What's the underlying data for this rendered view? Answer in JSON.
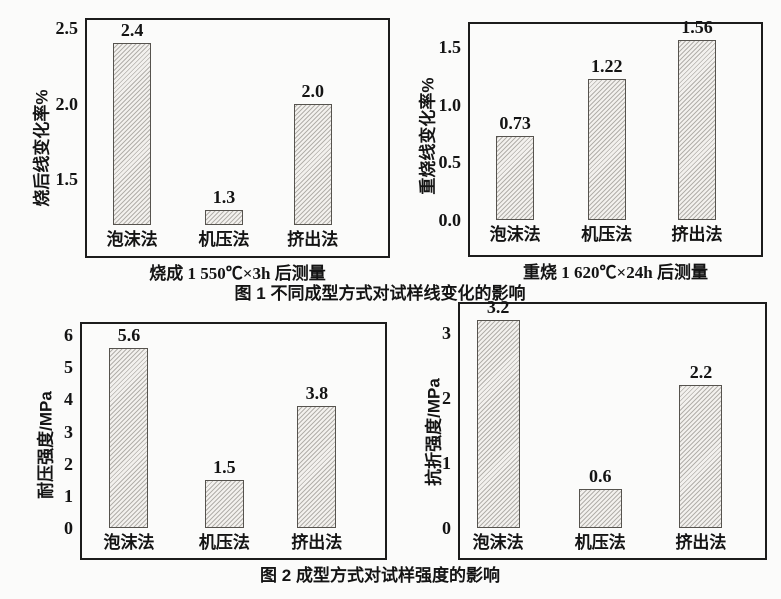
{
  "captions": {
    "figure1": "图 1 不同成型方式对试样线变化的影响",
    "figure2": "图 2 成型方式对试样强度的影响"
  },
  "chart_data": [
    {
      "id": "fired-linear-change-rate",
      "figure": "图 1",
      "type": "bar",
      "ylabel": "烧后线变化率%",
      "xlabel": "烧成 1 550℃×3h 后测量",
      "categories": [
        "泡沫法",
        "机压法",
        "挤出法"
      ],
      "values": [
        2.4,
        1.3,
        2.0
      ],
      "value_labels": [
        "2.4",
        "1.3",
        "2.0"
      ],
      "yticks": [
        1.5,
        2.0,
        2.5
      ],
      "ytick_labels": [
        "1.5",
        "2.0",
        "2.5"
      ],
      "ylim": [
        1.2,
        2.55
      ],
      "grid": false,
      "legend": false
    },
    {
      "id": "reheat-linear-change-rate",
      "figure": "图 1",
      "type": "bar",
      "ylabel": "重烧线变化率%",
      "xlabel": "重烧 1 620℃×24h 后测量",
      "categories": [
        "泡沫法",
        "机压法",
        "挤出法"
      ],
      "values": [
        0.73,
        1.22,
        1.56
      ],
      "value_labels": [
        "0.73",
        "1.22",
        "1.56"
      ],
      "yticks": [
        0.0,
        0.5,
        1.0,
        1.5
      ],
      "ytick_labels": [
        "0.0",
        "0.5",
        "1.0",
        "1.5"
      ],
      "ylim": [
        0,
        1.7
      ],
      "grid": false,
      "legend": false
    },
    {
      "id": "compressive-strength",
      "figure": "图 2",
      "type": "bar",
      "ylabel": "耐压强度/MPa",
      "xlabel": "",
      "categories": [
        "泡沫法",
        "机压法",
        "挤出法"
      ],
      "values": [
        5.6,
        1.5,
        3.8
      ],
      "value_labels": [
        "5.6",
        "1.5",
        "3.8"
      ],
      "yticks": [
        0,
        1,
        2,
        3,
        4,
        5,
        6
      ],
      "ytick_labels": [
        "0",
        "1",
        "2",
        "3",
        "4",
        "5",
        "6"
      ],
      "ylim": [
        0,
        6.35
      ],
      "grid": false,
      "legend": false
    },
    {
      "id": "flexural-strength",
      "figure": "图 2",
      "type": "bar",
      "ylabel": "抗折强度/MPa",
      "xlabel": "",
      "categories": [
        "泡沫法",
        "机压法",
        "挤出法"
      ],
      "values": [
        3.2,
        0.6,
        2.2
      ],
      "value_labels": [
        "3.2",
        "0.6",
        "2.2"
      ],
      "yticks": [
        0,
        1,
        2,
        3
      ],
      "ytick_labels": [
        "0",
        "1",
        "2",
        "3"
      ],
      "ylim": [
        0,
        3.45
      ],
      "grid": false,
      "legend": false
    }
  ],
  "style": {
    "background": "#fbfbfa",
    "axis_color": "#1c1c1c",
    "text_color": "#141414",
    "bar_fill": "#f3f1ee",
    "bar_hatch_line": "#b3b0ab",
    "bar_border": "#56534e",
    "hatch_direction": "/"
  }
}
